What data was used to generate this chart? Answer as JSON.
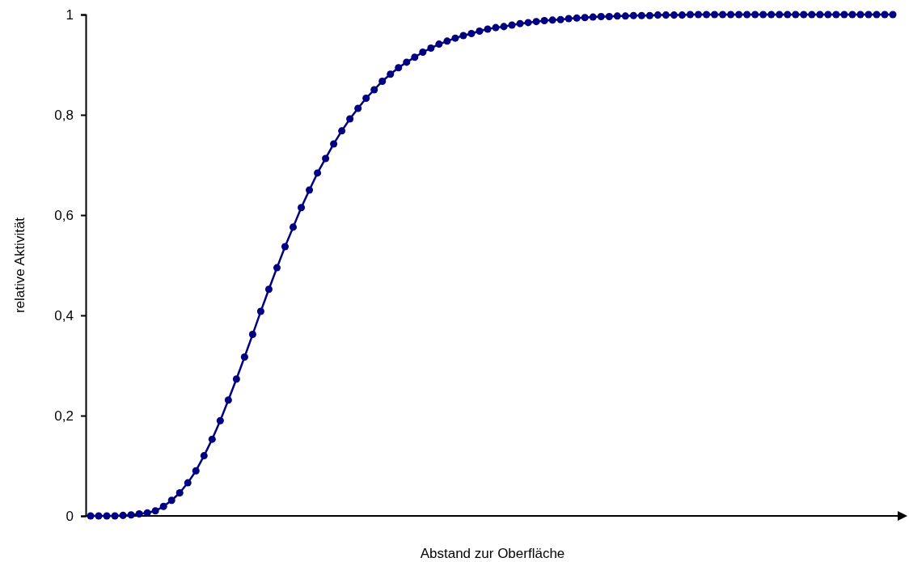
{
  "chart_data": {
    "type": "line",
    "xlabel": "Abstand zur Oberfläche",
    "ylabel": "relative Aktivität",
    "categories": [
      null,
      null,
      null,
      null,
      null,
      null,
      null,
      null,
      null,
      null,
      null,
      null,
      null,
      null,
      null,
      null,
      null,
      null,
      null,
      null,
      null,
      null,
      null,
      null,
      null,
      null,
      null,
      null,
      null,
      null,
      null,
      null,
      null,
      null,
      null,
      null,
      null,
      null,
      null,
      null,
      null,
      null,
      null,
      null,
      null,
      null,
      null,
      null,
      null,
      null,
      null,
      null,
      null,
      null,
      null,
      null,
      null,
      null,
      null,
      null,
      null,
      null,
      null,
      null,
      null,
      null,
      null,
      null,
      null,
      null,
      null,
      null,
      null,
      null,
      null,
      null,
      null,
      null,
      null,
      null,
      null,
      null,
      null,
      null,
      null,
      null,
      null,
      null,
      null,
      null,
      null,
      null,
      null,
      null,
      null,
      null,
      null,
      null,
      null,
      null
    ],
    "series": [
      {
        "color": "#000080",
        "values": [
          0,
          0,
          0,
          0,
          0.001,
          0.002,
          0.004,
          0.006,
          0.01,
          0.019,
          0.031,
          0.046,
          0.066,
          0.09,
          0.12,
          0.153,
          0.19,
          0.231,
          0.273,
          0.317,
          0.362,
          0.408,
          0.452,
          0.495,
          0.537,
          0.576,
          0.615,
          0.65,
          0.684,
          0.713,
          0.742,
          0.768,
          0.792,
          0.813,
          0.833,
          0.85,
          0.867,
          0.881,
          0.894,
          0.905,
          0.915,
          0.925,
          0.933,
          0.941,
          0.947,
          0.953,
          0.958,
          0.962,
          0.967,
          0.971,
          0.974,
          0.976,
          0.979,
          0.982,
          0.984,
          0.986,
          0.988,
          0.989,
          0.99,
          0.992,
          0.993,
          0.994,
          0.995,
          0.996,
          0.996,
          0.997,
          0.997,
          0.998,
          0.998,
          0.998,
          0.999,
          0.999,
          0.999,
          0.999,
          1,
          1,
          1,
          1,
          1,
          1,
          1,
          1,
          1,
          1,
          1,
          1,
          1,
          1,
          1,
          1,
          1,
          1,
          1,
          1,
          1,
          1,
          1,
          1,
          1,
          1
        ]
      }
    ],
    "ylim": [
      0,
      1
    ],
    "yticks": [
      0,
      {
        "value": 0.2,
        "label": "0,2"
      },
      {
        "value": 0.4,
        "label": "0,4"
      },
      {
        "value": 0.6,
        "label": "0,6"
      },
      {
        "value": 0.8,
        "label": "0,8"
      },
      1
    ],
    "grid": false,
    "marker": "circle",
    "line_style": "solid",
    "tick_labels": "y"
  }
}
